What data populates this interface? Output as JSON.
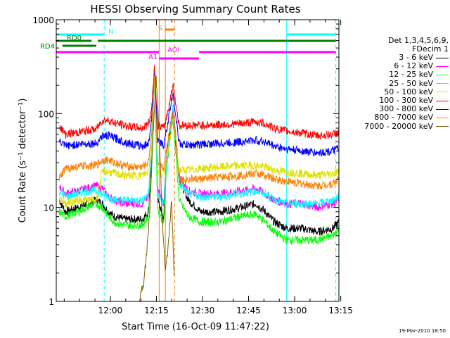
{
  "chart_data": {
    "type": "line",
    "title": "HESSI Observing Summary Count Rates",
    "xlabel": "Start Time (16-Oct-09 11:47:22)",
    "ylabel": "Count Rate (s⁻¹ detector⁻¹)",
    "yscale": "log",
    "ylim": [
      1,
      1000
    ],
    "xlim_min": [
      -5,
      87
    ],
    "x_units": "minutes after 11:47:22",
    "x_ticks": [
      {
        "label": "12:00",
        "value": 12.6
      },
      {
        "label": "12:15",
        "value": 27.6
      },
      {
        "label": "12:30",
        "value": 42.6
      },
      {
        "label": "12:45",
        "value": 57.6
      },
      {
        "label": "13:00",
        "value": 72.6
      },
      {
        "label": "13:15",
        "value": 87.6
      }
    ],
    "y_ticks": [
      {
        "label": "1",
        "value": 1
      },
      {
        "label": "10",
        "value": 10
      },
      {
        "label": "100",
        "value": 100
      },
      {
        "label": "1000",
        "value": 1000
      }
    ],
    "legend_header": [
      "Det 1,3,4,5,6,9,",
      "FDecim 1"
    ],
    "series": [
      {
        "name": "3 - 6 keV",
        "color": "#000000",
        "x": [
          -4,
          -2,
          2,
          5,
          8,
          10,
          12,
          14,
          17,
          20,
          23,
          25,
          26,
          27,
          28,
          30,
          31,
          33,
          35,
          38,
          42,
          48,
          55,
          60,
          63,
          66,
          70,
          75,
          80,
          85,
          87
        ],
        "y": [
          12,
          9,
          10,
          11,
          12,
          11,
          9,
          8,
          7.5,
          7.5,
          7.5,
          9,
          30,
          300,
          12,
          7.5,
          35,
          100,
          20,
          12,
          9,
          9,
          10,
          11,
          9,
          7,
          6,
          6,
          5.5,
          6,
          7
        ]
      },
      {
        "name": "6 - 12 keV",
        "color": "#ff00ff",
        "x": [
          -4,
          -2,
          2,
          5,
          8,
          10,
          12,
          14,
          17,
          20,
          23,
          25,
          26,
          27,
          28,
          30,
          31,
          33,
          35,
          38,
          42,
          48,
          55,
          60,
          63,
          66,
          70,
          75,
          80,
          85,
          87
        ],
        "y": [
          17,
          14,
          15,
          16,
          17,
          16,
          13,
          12,
          11,
          11,
          11,
          13,
          40,
          350,
          16,
          11,
          40,
          120,
          22,
          15,
          14,
          14,
          15,
          16,
          14,
          12,
          11,
          11,
          10,
          11,
          12
        ]
      },
      {
        "name": "12 - 25 keV",
        "color": "#00ff00",
        "x": [
          -4,
          -2,
          2,
          5,
          8,
          10,
          12,
          14,
          17,
          20,
          23,
          25,
          26,
          27,
          28,
          30,
          31,
          33,
          35,
          38,
          42,
          48,
          55,
          60,
          63,
          66,
          70,
          75,
          80,
          85,
          87
        ],
        "y": [
          9,
          8,
          9,
          10,
          11,
          10,
          8,
          7,
          6.5,
          6.5,
          6.5,
          8,
          25,
          280,
          10,
          6.5,
          30,
          90,
          12,
          8,
          7,
          7,
          8,
          8.5,
          7,
          5.5,
          4.5,
          4.5,
          4.5,
          5,
          6
        ]
      },
      {
        "name": "25 - 50 keV",
        "color": "#00ffff",
        "x": [
          -4,
          -2,
          2,
          5,
          8,
          10,
          12,
          14,
          17,
          20,
          23,
          25,
          26,
          27,
          28,
          30,
          31,
          33,
          35,
          38,
          42,
          48,
          55,
          60,
          63,
          66,
          70,
          75,
          80,
          85,
          87
        ],
        "y": [
          15,
          13,
          14,
          15,
          15,
          14,
          13,
          12,
          12,
          12,
          12,
          14,
          40,
          300,
          14,
          11,
          35,
          120,
          18,
          14,
          13,
          13,
          14,
          15,
          14,
          12,
          11,
          11,
          11,
          12,
          13
        ]
      },
      {
        "name": "50 - 100 keV",
        "color": "#e0e000",
        "x": [
          -4,
          -2,
          2,
          5,
          8,
          10,
          12,
          14,
          17,
          20,
          23,
          25,
          26,
          27,
          28,
          30,
          31,
          33,
          35,
          38,
          42,
          48,
          55,
          60,
          63,
          66,
          70,
          75,
          80,
          85,
          87
        ],
        "y": [
          13,
          11,
          12,
          12,
          12,
          24,
          24,
          23,
          22,
          22,
          22,
          24,
          50,
          260,
          24,
          22,
          35,
          90,
          25,
          25,
          26,
          27,
          28,
          28,
          27,
          25,
          24,
          23,
          22,
          23,
          24
        ]
      },
      {
        "name": "100 - 300 keV",
        "color": "#ff0000",
        "x": [
          -4,
          -2,
          2,
          5,
          8,
          10,
          12,
          14,
          17,
          20,
          23,
          25,
          26,
          27,
          28,
          30,
          31,
          33,
          35,
          38,
          42,
          48,
          55,
          60,
          63,
          66,
          70,
          75,
          80,
          85,
          87
        ],
        "y": [
          75,
          60,
          63,
          66,
          68,
          85,
          85,
          80,
          75,
          72,
          70,
          78,
          110,
          330,
          75,
          70,
          95,
          200,
          75,
          75,
          75,
          76,
          78,
          82,
          78,
          70,
          65,
          62,
          58,
          60,
          63
        ]
      },
      {
        "name": "300 - 800 keV",
        "color": "#0000ff",
        "x": [
          -4,
          -2,
          2,
          5,
          8,
          10,
          12,
          14,
          17,
          20,
          23,
          25,
          26,
          27,
          28,
          30,
          31,
          33,
          35,
          38,
          42,
          48,
          55,
          60,
          63,
          66,
          70,
          75,
          80,
          85,
          87
        ],
        "y": [
          50,
          45,
          47,
          48,
          48,
          58,
          58,
          55,
          50,
          47,
          45,
          48,
          85,
          300,
          50,
          46,
          70,
          170,
          48,
          46,
          47,
          48,
          50,
          52,
          50,
          45,
          42,
          40,
          38,
          40,
          43
        ]
      },
      {
        "name": "800 - 7000 keV",
        "color": "#ff8000",
        "x": [
          -4,
          -2,
          2,
          5,
          8,
          10,
          12,
          14,
          17,
          20,
          23,
          25,
          26,
          27,
          28,
          30,
          31,
          33,
          35,
          38,
          42,
          48,
          55,
          60,
          63,
          66,
          70,
          75,
          80,
          85,
          87
        ],
        "y": [
          20,
          26,
          27,
          28,
          28,
          32,
          32,
          30,
          28,
          27,
          27,
          30,
          60,
          280,
          28,
          26,
          45,
          110,
          20,
          20,
          20,
          21,
          22,
          23,
          22,
          20,
          19,
          18,
          17,
          18,
          20
        ]
      },
      {
        "name": "7000 - 20000 keV",
        "color": "#806000",
        "x": [
          22,
          23.5,
          24.5,
          25.5,
          26.5,
          27.5,
          28.5,
          29.5,
          30.5,
          31.5,
          32.5,
          33.5
        ],
        "y": [
          1,
          1.6,
          3.5,
          10,
          60,
          250,
          60,
          8,
          2,
          4,
          12,
          1.5
        ]
      }
    ],
    "flags": [
      {
        "label": "N",
        "color": "#00ffff",
        "segments": [
          [
            -5,
            10.6
          ],
          [
            70,
            86
          ]
        ]
      },
      {
        "label": "RD0",
        "color": "#008000",
        "segments": [
          [
            -5,
            6.5
          ],
          [
            8.5,
            86
          ]
        ]
      },
      {
        "label": "RD4",
        "color": "#008000",
        "segments": [
          [
            -3,
            8
          ]
        ]
      },
      {
        "label": "S",
        "color": "#ff8000",
        "segments": [
          [
            30.5,
            33.5
          ]
        ]
      },
      {
        "label": "AOI",
        "color": "#ff00ff",
        "segments": [
          [
            -5,
            28.5
          ],
          [
            41.5,
            86
          ]
        ]
      },
      {
        "label": "A1",
        "color": "#ff00ff",
        "segments": [
          [
            28.5,
            41.5
          ]
        ]
      }
    ],
    "vertical_lines": [
      {
        "x": -5,
        "color": "#00ffff",
        "style": "solid"
      },
      {
        "x": 10.6,
        "color": "#00ffff",
        "style": "dashed"
      },
      {
        "x": 70,
        "color": "#00ffff",
        "style": "solid"
      },
      {
        "x": 86,
        "color": "#00ffff",
        "style": "dashed"
      },
      {
        "x": 30.5,
        "color": "#ff8000",
        "style": "solid"
      },
      {
        "x": 33.5,
        "color": "#ff8000",
        "style": "dashed"
      },
      {
        "x": 28.5,
        "color": "#ff8000",
        "style": "solid"
      }
    ]
  },
  "footer": {
    "date": "19-Mar-2010 18:50"
  }
}
